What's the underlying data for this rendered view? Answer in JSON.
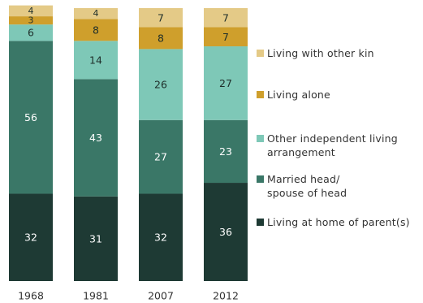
{
  "chart_data": {
    "type": "bar",
    "stacked": true,
    "categories": [
      "1968",
      "1981",
      "2007",
      "2012"
    ],
    "ylim": [
      0,
      100
    ],
    "series": [
      {
        "name": "Living at home of parent(s)",
        "color": "#1e3a34",
        "values": [
          32,
          31,
          32,
          36
        ]
      },
      {
        "name": "Married head/\nspouse of head",
        "color": "#3a7767",
        "values": [
          56,
          43,
          27,
          23
        ]
      },
      {
        "name": "Other independent living\narrangement",
        "color": "#7ec8b7",
        "values": [
          6,
          14,
          26,
          27
        ]
      },
      {
        "name": "Living alone",
        "color": "#cf9f2c",
        "values": [
          3,
          8,
          8,
          7
        ]
      },
      {
        "name": "Living with other kin",
        "color": "#e4ca87",
        "values": [
          4,
          4,
          7,
          7
        ]
      }
    ],
    "legend_position": "right",
    "grid": false
  }
}
